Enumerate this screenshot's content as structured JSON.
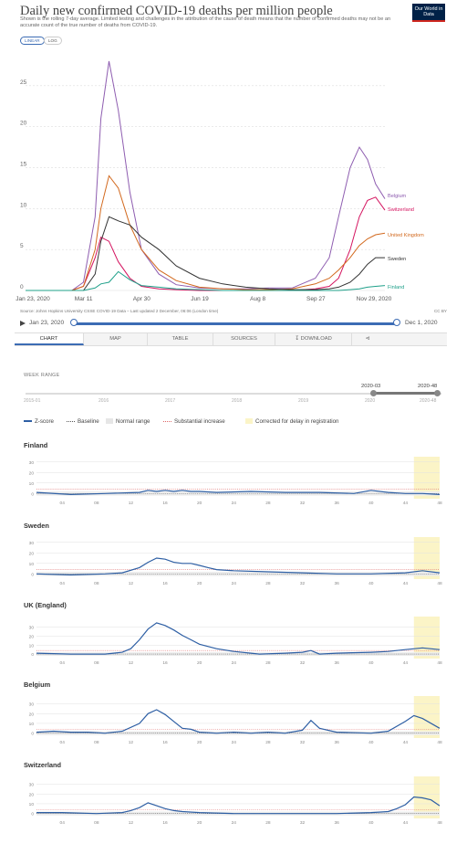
{
  "header": {
    "title": "Daily new confirmed COVID-19 deaths per million people",
    "subtitle": "Shown is the rolling 7-day average. Limited testing and challenges in the attribution of the cause of death means that the number of confirmed deaths may not be an accurate count of the true number of deaths from COVID-19.",
    "logo": "Our World in Data",
    "scale_linear": "LINEAR",
    "scale_log": "LOG"
  },
  "footer": {
    "source": "Source: Johns Hopkins University CSSE COVID-19 Data – Last updated 2 December, 06:06 (London time)",
    "license": "CC BY"
  },
  "timeline": {
    "start": "Jan 23, 2020",
    "end": "Dec 1, 2020"
  },
  "tabs": [
    "CHART",
    "MAP",
    "TABLE",
    "SOURCES",
    "DOWNLOAD"
  ],
  "week_range": {
    "label": "WEEK RANGE",
    "selected_start": "2020-03",
    "selected_end": "2020-48",
    "years": [
      "2015-01",
      "2016",
      "2017",
      "2018",
      "2019",
      "2020",
      "2020-48"
    ]
  },
  "legend": {
    "zscore": "Z-score",
    "baseline": "Baseline",
    "normal": "Normal range",
    "substantial": "Substantial increase",
    "corrected": "Corrected for delay in registration"
  },
  "colors": {
    "belgium": "#8e5db0",
    "switzerland": "#d4135f",
    "uk": "#d2691e",
    "sweden": "#333333",
    "finland": "#1fa08a",
    "zscore": "#2e5fa4",
    "corrected": "#fbf4c7"
  },
  "chart_data": [
    {
      "type": "line",
      "title": "Daily new confirmed COVID-19 deaths per million people",
      "x_ticks": [
        "Jan 23, 2020",
        "Mar 11",
        "Apr 30",
        "Jun 19",
        "Aug 8",
        "Sep 27",
        "Nov 29, 2020"
      ],
      "y_ticks": [
        0,
        5,
        10,
        15,
        20,
        25
      ],
      "ylim": [
        0,
        29
      ],
      "x_days": [
        0,
        40,
        50,
        60,
        65,
        72,
        80,
        90,
        100,
        115,
        130,
        150,
        170,
        190,
        210,
        230,
        250,
        262,
        270,
        280,
        288,
        295,
        302,
        310
      ],
      "series": [
        {
          "name": "Belgium",
          "values": [
            0,
            0,
            1,
            9,
            21,
            28,
            22,
            12,
            5,
            2,
            0.7,
            0.3,
            0.2,
            0.2,
            0.3,
            0.3,
            1.5,
            4,
            9,
            15,
            17.5,
            16,
            13,
            11.2
          ]
        },
        {
          "name": "Switzerland",
          "values": [
            0,
            0,
            0.5,
            4,
            6.5,
            6,
            3.5,
            1.5,
            0.5,
            0.2,
            0.1,
            0,
            0,
            0,
            0,
            0,
            0.2,
            0.5,
            1.5,
            5,
            9,
            11,
            11.4,
            9.8
          ]
        },
        {
          "name": "United Kingdom",
          "values": [
            0,
            0,
            0.5,
            5,
            10,
            14,
            12.5,
            8,
            5,
            2.5,
            1.2,
            0.4,
            0.2,
            0.1,
            0.1,
            0.2,
            0.8,
            1.5,
            2.5,
            4,
            5.5,
            6.3,
            6.8,
            7
          ]
        },
        {
          "name": "Sweden",
          "values": [
            0,
            0,
            0,
            2,
            6,
            9,
            8.5,
            8,
            6.5,
            5,
            3,
            1.5,
            0.8,
            0.4,
            0.2,
            0.1,
            0.1,
            0.2,
            0.4,
            1,
            2,
            3.2,
            4,
            4
          ]
        },
        {
          "name": "Finland",
          "values": [
            0,
            0,
            0,
            0.3,
            0.8,
            1,
            2.3,
            1.3,
            0.6,
            0.4,
            0.2,
            0.1,
            0,
            0,
            0,
            0,
            0,
            0,
            0,
            0.1,
            0.2,
            0.4,
            0.5,
            0.6
          ]
        }
      ]
    },
    {
      "type": "line",
      "title": "Finland",
      "x_ticks": [
        "04",
        "08",
        "12",
        "16",
        "20",
        "24",
        "28",
        "32",
        "36",
        "40",
        "44",
        "48"
      ],
      "y_ticks": [
        0,
        10,
        20,
        30
      ],
      "ylim": [
        -5,
        35
      ],
      "corrected_from_week": 45,
      "weeks": [
        1,
        5,
        9,
        13,
        14,
        15,
        16,
        17,
        18,
        19,
        20,
        22,
        26,
        30,
        34,
        38,
        40,
        42,
        44,
        46,
        48
      ],
      "values": [
        1,
        -1,
        0,
        1,
        3,
        2,
        3,
        2,
        3,
        2,
        2,
        1,
        2,
        1,
        1,
        0,
        3,
        1,
        0,
        0,
        -1
      ]
    },
    {
      "type": "line",
      "title": "Sweden",
      "x_ticks": [
        "04",
        "08",
        "12",
        "16",
        "20",
        "24",
        "28",
        "32",
        "36",
        "40",
        "44",
        "48"
      ],
      "y_ticks": [
        0,
        10,
        20,
        30
      ],
      "ylim": [
        -5,
        35
      ],
      "corrected_from_week": 45,
      "weeks": [
        1,
        5,
        9,
        11,
        13,
        14,
        15,
        16,
        17,
        18,
        19,
        20,
        21,
        22,
        24,
        28,
        32,
        36,
        40,
        44,
        46,
        48
      ],
      "values": [
        0,
        -1,
        0,
        1,
        6,
        11,
        15,
        14,
        11,
        10,
        10,
        8,
        6,
        4,
        3,
        2,
        1,
        0,
        0,
        1,
        3,
        1
      ]
    },
    {
      "type": "line",
      "title": "UK (England)",
      "x_ticks": [
        "04",
        "08",
        "12",
        "16",
        "20",
        "24",
        "28",
        "32",
        "36",
        "40",
        "44",
        "48"
      ],
      "y_ticks": [
        0,
        10,
        20,
        30
      ],
      "ylim": [
        -5,
        42
      ],
      "corrected_from_week": 45,
      "weeks": [
        1,
        5,
        9,
        11,
        12,
        13,
        14,
        15,
        16,
        17,
        18,
        19,
        20,
        22,
        24,
        26,
        27,
        30,
        32,
        33,
        34,
        36,
        40,
        42,
        44,
        46,
        48
      ],
      "values": [
        1,
        0,
        0,
        2,
        6,
        16,
        28,
        35,
        32,
        27,
        21,
        16,
        11,
        6,
        3,
        1,
        0,
        1,
        2,
        4,
        0,
        1,
        2,
        3,
        5,
        7,
        5
      ]
    },
    {
      "type": "line",
      "title": "Belgium",
      "x_ticks": [
        "04",
        "08",
        "12",
        "16",
        "20",
        "24",
        "28",
        "32",
        "36",
        "40",
        "44",
        "48"
      ],
      "y_ticks": [
        0,
        10,
        20,
        30
      ],
      "ylim": [
        -5,
        38
      ],
      "corrected_from_week": 45,
      "weeks": [
        1,
        3,
        5,
        7,
        9,
        11,
        13,
        14,
        15,
        16,
        17,
        18,
        19,
        20,
        22,
        24,
        26,
        28,
        30,
        32,
        33,
        34,
        36,
        40,
        42,
        44,
        45,
        46,
        48
      ],
      "values": [
        1,
        2,
        1,
        1,
        0,
        2,
        10,
        20,
        24,
        19,
        12,
        5,
        4,
        1,
        0,
        1,
        0,
        1,
        0,
        3,
        13,
        5,
        1,
        0,
        2,
        12,
        18,
        15,
        5
      ]
    },
    {
      "type": "line",
      "title": "Switzerland",
      "x_ticks": [
        "04",
        "08",
        "12",
        "16",
        "20",
        "24",
        "28",
        "32",
        "36",
        "40",
        "44",
        "48"
      ],
      "y_ticks": [
        0,
        10,
        20,
        30
      ],
      "ylim": [
        -5,
        38
      ],
      "corrected_from_week": 45,
      "weeks": [
        1,
        4,
        8,
        11,
        12,
        13,
        14,
        15,
        16,
        17,
        18,
        20,
        24,
        28,
        32,
        36,
        40,
        42,
        43,
        44,
        45,
        46,
        47,
        48
      ],
      "values": [
        1,
        1,
        0,
        1,
        3,
        6,
        11,
        8,
        5,
        3,
        2,
        1,
        0,
        0,
        0,
        0,
        1,
        2,
        5,
        9,
        17,
        16,
        14,
        8
      ]
    }
  ]
}
